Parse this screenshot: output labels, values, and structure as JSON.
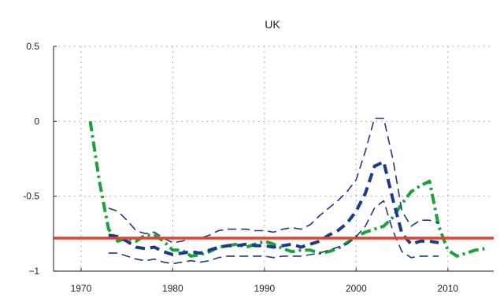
{
  "chart_data": {
    "type": "line",
    "title": "UK",
    "xlabel": "",
    "ylabel": "",
    "xlim": [
      1967,
      2015
    ],
    "ylim": [
      -1,
      0.5
    ],
    "x_ticks": [
      1970,
      1980,
      1990,
      2000,
      2010
    ],
    "y_ticks": [
      0.5,
      0,
      -0.5,
      -1
    ],
    "y_tick_labels": [
      "0.5",
      "0",
      "-0.5",
      "−1"
    ],
    "grid": true,
    "reference_line": {
      "y": -0.78,
      "color": "#e8402a"
    },
    "series": [
      {
        "style": "dash-dot-heavy",
        "color": "#1aa23a",
        "x": [
          1971,
          1972,
          1973,
          1974,
          1975,
          1976,
          1977,
          1978,
          1979,
          1980,
          1981,
          1982,
          1983,
          1984,
          1985,
          1986,
          1987,
          1988,
          1989,
          1990,
          1991,
          1992,
          1993,
          1994,
          1995,
          1996,
          1997,
          1998,
          1999,
          2000,
          2001,
          2002,
          2003,
          2004,
          2005,
          2006,
          2007,
          2008,
          2009,
          2010,
          2011,
          2012,
          2013,
          2014
        ],
        "y": [
          0.0,
          -0.4,
          -0.72,
          -0.8,
          -0.78,
          -0.8,
          -0.76,
          -0.76,
          -0.8,
          -0.86,
          -0.86,
          -0.9,
          -0.89,
          -0.87,
          -0.84,
          -0.83,
          -0.82,
          -0.84,
          -0.82,
          -0.8,
          -0.82,
          -0.85,
          -0.87,
          -0.86,
          -0.86,
          -0.88,
          -0.87,
          -0.85,
          -0.81,
          -0.77,
          -0.74,
          -0.72,
          -0.7,
          -0.64,
          -0.55,
          -0.47,
          -0.43,
          -0.4,
          -0.7,
          -0.86,
          -0.9,
          -0.88,
          -0.86,
          -0.85
        ]
      },
      {
        "style": "dashed-heavy",
        "color": "#1a3a8c",
        "x": [
          1973,
          1974,
          1975,
          1976,
          1977,
          1978,
          1979,
          1980,
          1981,
          1982,
          1983,
          1984,
          1985,
          1986,
          1987,
          1988,
          1989,
          1990,
          1991,
          1992,
          1993,
          1994,
          1995,
          1996,
          1997,
          1998,
          1999,
          2000,
          2001,
          2002,
          2003,
          2004,
          2005,
          2006,
          2007,
          2008,
          2009
        ],
        "y": [
          -0.76,
          -0.77,
          -0.8,
          -0.84,
          -0.85,
          -0.84,
          -0.87,
          -0.89,
          -0.88,
          -0.87,
          -0.88,
          -0.86,
          -0.84,
          -0.83,
          -0.83,
          -0.82,
          -0.83,
          -0.83,
          -0.84,
          -0.83,
          -0.82,
          -0.84,
          -0.82,
          -0.8,
          -0.76,
          -0.73,
          -0.68,
          -0.6,
          -0.48,
          -0.3,
          -0.27,
          -0.52,
          -0.75,
          -0.82,
          -0.8,
          -0.8,
          -0.81
        ]
      },
      {
        "style": "dashed-thin",
        "color": "#1a3a8c",
        "x": [
          1973,
          1974,
          1975,
          1976,
          1977,
          1978,
          1979,
          1980,
          1981,
          1982,
          1983,
          1984,
          1985,
          1986,
          1987,
          1988,
          1989,
          1990,
          1991,
          1992,
          1993,
          1994,
          1995,
          1996,
          1997,
          1998,
          1999,
          2000,
          2001,
          2002,
          2003,
          2004,
          2005,
          2006,
          2007,
          2008,
          2009
        ],
        "y": [
          -0.58,
          -0.6,
          -0.66,
          -0.73,
          -0.75,
          -0.74,
          -0.78,
          -0.81,
          -0.8,
          -0.78,
          -0.78,
          -0.76,
          -0.73,
          -0.72,
          -0.72,
          -0.72,
          -0.73,
          -0.73,
          -0.74,
          -0.72,
          -0.71,
          -0.72,
          -0.69,
          -0.63,
          -0.58,
          -0.53,
          -0.47,
          -0.39,
          -0.2,
          0.02,
          0.02,
          -0.25,
          -0.6,
          -0.7,
          -0.66,
          -0.66,
          -0.68
        ]
      },
      {
        "style": "dashed-thin",
        "color": "#1a3a8c",
        "x": [
          1973,
          1974,
          1975,
          1976,
          1977,
          1978,
          1979,
          1980,
          1981,
          1982,
          1983,
          1984,
          1985,
          1986,
          1987,
          1988,
          1989,
          1990,
          1991,
          1992,
          1993,
          1994,
          1995,
          1996,
          1997,
          1998,
          1999,
          2000,
          2001,
          2002,
          2003,
          2004,
          2005,
          2006,
          2007,
          2008,
          2009
        ],
        "y": [
          -0.88,
          -0.88,
          -0.9,
          -0.92,
          -0.93,
          -0.92,
          -0.94,
          -0.95,
          -0.94,
          -0.93,
          -0.94,
          -0.93,
          -0.91,
          -0.9,
          -0.9,
          -0.9,
          -0.9,
          -0.9,
          -0.91,
          -0.9,
          -0.9,
          -0.9,
          -0.89,
          -0.88,
          -0.86,
          -0.84,
          -0.82,
          -0.77,
          -0.7,
          -0.58,
          -0.53,
          -0.73,
          -0.87,
          -0.91,
          -0.9,
          -0.9,
          -0.9
        ]
      }
    ]
  }
}
